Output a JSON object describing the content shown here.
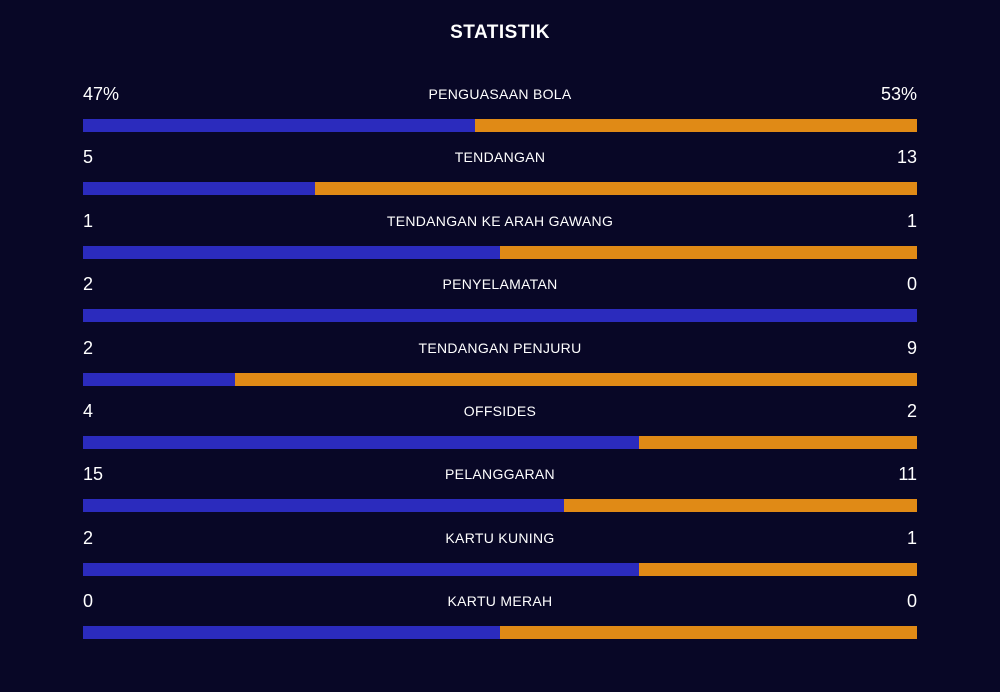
{
  "title": "STATISTIK",
  "colors": {
    "background": "#080726",
    "home_bar": "#2b2bbd",
    "away_bar": "#e08a16",
    "text": "#ffffff"
  },
  "stats": [
    {
      "label": "PENGUASAAN BOLA",
      "home": "47%",
      "away": "53%",
      "home_fraction": 0.47
    },
    {
      "label": "TENDANGAN",
      "home": "5",
      "away": "13",
      "home_fraction": 0.2778
    },
    {
      "label": "TENDANGAN KE ARAH GAWANG",
      "home": "1",
      "away": "1",
      "home_fraction": 0.5
    },
    {
      "label": "PENYELAMATAN",
      "home": "2",
      "away": "0",
      "home_fraction": 1.0
    },
    {
      "label": "TENDANGAN PENJURU",
      "home": "2",
      "away": "9",
      "home_fraction": 0.1818
    },
    {
      "label": "OFFSIDES",
      "home": "4",
      "away": "2",
      "home_fraction": 0.6667
    },
    {
      "label": "PELANGGARAN",
      "home": "15",
      "away": "11",
      "home_fraction": 0.5769
    },
    {
      "label": "KARTU KUNING",
      "home": "2",
      "away": "1",
      "home_fraction": 0.6667
    },
    {
      "label": "KARTU MERAH",
      "home": "0",
      "away": "0",
      "home_fraction": 0.5
    }
  ]
}
